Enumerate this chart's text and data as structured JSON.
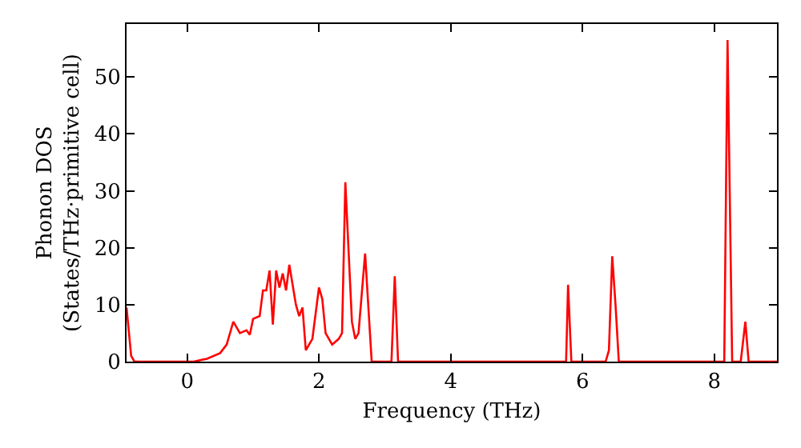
{
  "chart_data": {
    "type": "line",
    "xlabel": "Frequency (THz)",
    "ylabel": "Phonon DOS\n(States/THz·primitive cell)",
    "x": [
      -0.92,
      -0.85,
      -0.8,
      0.1,
      0.3,
      0.5,
      0.6,
      0.7,
      0.8,
      0.9,
      0.95,
      1.0,
      1.1,
      1.15,
      1.2,
      1.25,
      1.3,
      1.35,
      1.4,
      1.45,
      1.5,
      1.55,
      1.65,
      1.7,
      1.75,
      1.8,
      1.9,
      2.0,
      2.05,
      2.1,
      2.2,
      2.3,
      2.35,
      2.4,
      2.5,
      2.55,
      2.6,
      2.7,
      2.8,
      3.1,
      3.15,
      3.2,
      5.75,
      5.78,
      5.83,
      6.35,
      6.4,
      6.45,
      6.5,
      6.55,
      8.15,
      8.2,
      8.27,
      8.4,
      8.47,
      8.52,
      8.95
    ],
    "series": [
      {
        "color": "#ff0000",
        "values": [
          9.5,
          1,
          0,
          0,
          0.5,
          1.5,
          3,
          7,
          5,
          5.5,
          4.7,
          7.5,
          8,
          12.5,
          12.5,
          16,
          6.5,
          16,
          13,
          15.5,
          12.5,
          17,
          10,
          8,
          9.5,
          2,
          4,
          13,
          11,
          5,
          3,
          4,
          5,
          31.5,
          7,
          4,
          5,
          19,
          0,
          0,
          15,
          0,
          0,
          13.5,
          0,
          0,
          2,
          18.5,
          10,
          0,
          0,
          56.5,
          0,
          0,
          7,
          0,
          0
        ]
      }
    ],
    "xlim": [
      -0.92,
      8.95
    ],
    "ylim": [
      0,
      59.3
    ],
    "xticks": [
      0,
      2,
      4,
      6,
      8
    ],
    "yticks": [
      0,
      10,
      20,
      30,
      40,
      50
    ],
    "grid": false,
    "legend": false,
    "marker": "none",
    "line_style": "solid"
  }
}
